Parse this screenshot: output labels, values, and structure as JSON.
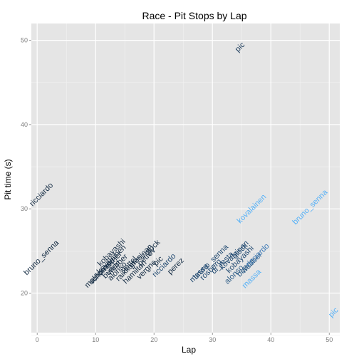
{
  "chart_data": {
    "type": "scatter",
    "title": "Race - Pit Stops by Lap",
    "xlabel": "Lap",
    "ylabel": "Pit time (s)",
    "xlim": [
      -1,
      51.8
    ],
    "ylim": [
      15.3,
      52
    ],
    "xticks": [
      0,
      10,
      20,
      30,
      40,
      50
    ],
    "yticks": [
      20,
      30,
      40,
      50
    ],
    "grid": true,
    "legend": "none",
    "colors": {
      "panel": "#e5e5e5",
      "grid_major": "#ffffff",
      "grid_minor": "#f2f2f2",
      "dark_label": "#132b43",
      "light_label": "#56b1f7"
    },
    "points": [
      {
        "driver": "pic",
        "lap": 35,
        "time": 49.0,
        "color": "#1a3a5a"
      },
      {
        "driver": "ricciardo",
        "lap": 1,
        "time": 31.5,
        "color": "#132b43"
      },
      {
        "driver": "bruno_senna",
        "lap": 1,
        "time": 24.0,
        "color": "#132b43"
      },
      {
        "driver": "kobayashi",
        "lap": 13,
        "time": 24.6,
        "color": "#132b43"
      },
      {
        "driver": "kovalainen",
        "lap": 13,
        "time": 23.8,
        "color": "#132b43"
      },
      {
        "driver": "schumacher",
        "lap": 12,
        "time": 22.8,
        "color": "#132b43"
      },
      {
        "driver": "maldonado",
        "lap": 11,
        "time": 22.2,
        "color": "#132b43"
      },
      {
        "driver": "button",
        "lap": 13,
        "time": 22.6,
        "color": "#132b43"
      },
      {
        "driver": "alonso",
        "lap": 14,
        "time": 22.4,
        "color": "#132b43"
      },
      {
        "driver": "webber",
        "lap": 14,
        "time": 23.2,
        "color": "#132b43"
      },
      {
        "driver": "vettel",
        "lap": 16,
        "time": 23.2,
        "color": "#132b43"
      },
      {
        "driver": "hamilton",
        "lap": 17,
        "time": 22.3,
        "color": "#132b43"
      },
      {
        "driver": "raikkonen",
        "lap": 16,
        "time": 22.8,
        "color": "#132b43"
      },
      {
        "driver": "glock",
        "lap": 20,
        "time": 25.2,
        "color": "#132b43"
      },
      {
        "driver": "petrov",
        "lap": 19,
        "time": 24.1,
        "color": "#132b43"
      },
      {
        "driver": "pic",
        "lap": 21,
        "time": 23.6,
        "color": "#132b43"
      },
      {
        "driver": "vergne",
        "lap": 19,
        "time": 22.6,
        "color": "#132b43"
      },
      {
        "driver": "grosjean",
        "lap": 18,
        "time": 24.2,
        "color": "#132b43"
      },
      {
        "driver": "perez",
        "lap": 24,
        "time": 23.0,
        "color": "#132b43"
      },
      {
        "driver": "ricciardo",
        "lap": 22,
        "time": 23.1,
        "color": "#1f4870"
      },
      {
        "driver": "massa",
        "lap": 28,
        "time": 22.2,
        "color": "#1f4870"
      },
      {
        "driver": "bruno_senna",
        "lap": 30,
        "time": 23.5,
        "color": "#1f4870"
      },
      {
        "driver": "rosberg",
        "lap": 30,
        "time": 22.6,
        "color": "#1f4870"
      },
      {
        "driver": "di_resta",
        "lap": 32,
        "time": 23.4,
        "color": "#1f4870"
      },
      {
        "driver": "kovalainen",
        "lap": 34,
        "time": 24.3,
        "color": "#1f4870"
      },
      {
        "driver": "glock",
        "lap": 35,
        "time": 24.8,
        "color": "#1f4870"
      },
      {
        "driver": "kobayashi",
        "lap": 35,
        "time": 23.8,
        "color": "#1f4870"
      },
      {
        "driver": "alonso",
        "lap": 34,
        "time": 22.0,
        "color": "#2a5a85"
      },
      {
        "driver": "button",
        "lap": 36,
        "time": 22.8,
        "color": "#2a5a85"
      },
      {
        "driver": "webber",
        "lap": 37,
        "time": 23.4,
        "color": "#2a5a85"
      },
      {
        "driver": "ricciardo",
        "lap": 38,
        "time": 24.3,
        "color": "#3a78b5"
      },
      {
        "driver": "massa",
        "lap": 37,
        "time": 21.5,
        "color": "#56b1f7"
      },
      {
        "driver": "kovalainen",
        "lap": 37,
        "time": 29.8,
        "color": "#56b1f7"
      },
      {
        "driver": "bruno_senna",
        "lap": 47,
        "time": 30.0,
        "color": "#56b1f7"
      },
      {
        "driver": "pic",
        "lap": 51,
        "time": 17.5,
        "color": "#56b1f7"
      }
    ]
  }
}
